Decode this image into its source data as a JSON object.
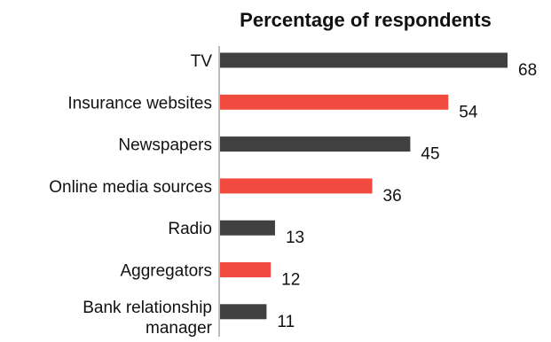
{
  "chart_data": {
    "type": "bar",
    "orientation": "horizontal",
    "title": "Percentage of respondents",
    "categories": [
      "TV",
      "Insurance websites",
      "Newspapers",
      "Online media sources",
      "Radio",
      "Aggregators",
      "Bank relationship manager"
    ],
    "values": [
      68,
      54,
      45,
      36,
      13,
      12,
      11
    ],
    "bar_colors": [
      "#404040",
      "#f04b3e",
      "#404040",
      "#f04b3e",
      "#404040",
      "#f04b3e",
      "#404040"
    ],
    "xlim": [
      0,
      68
    ],
    "grid": false,
    "legend": "none"
  }
}
